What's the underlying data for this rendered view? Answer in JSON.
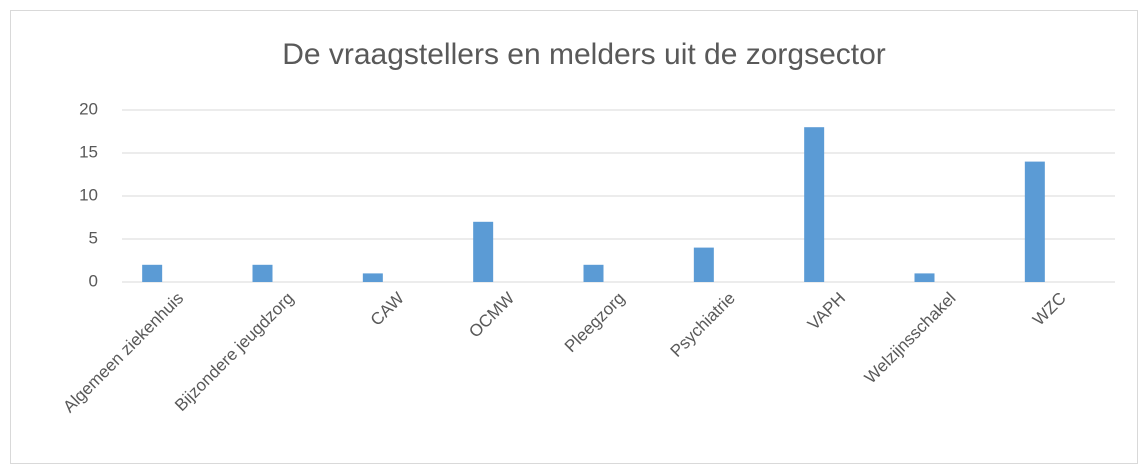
{
  "chart_data": {
    "type": "bar",
    "title": "De vraagstellers en melders uit de zorgsector",
    "categories": [
      "Algemeen ziekenhuis",
      "Bijzondere jeugdzorg",
      "CAW",
      "OCMW",
      "Pleegzorg",
      "Psychiatrie",
      "VAPH",
      "Welzijnsschakel",
      "WZC"
    ],
    "values": [
      2,
      2,
      1,
      7,
      2,
      4,
      18,
      1,
      14
    ],
    "color": "#5b9bd5",
    "ylim": [
      0,
      20
    ],
    "yticks": [
      0,
      5,
      10,
      15,
      20
    ],
    "grid": true
  }
}
